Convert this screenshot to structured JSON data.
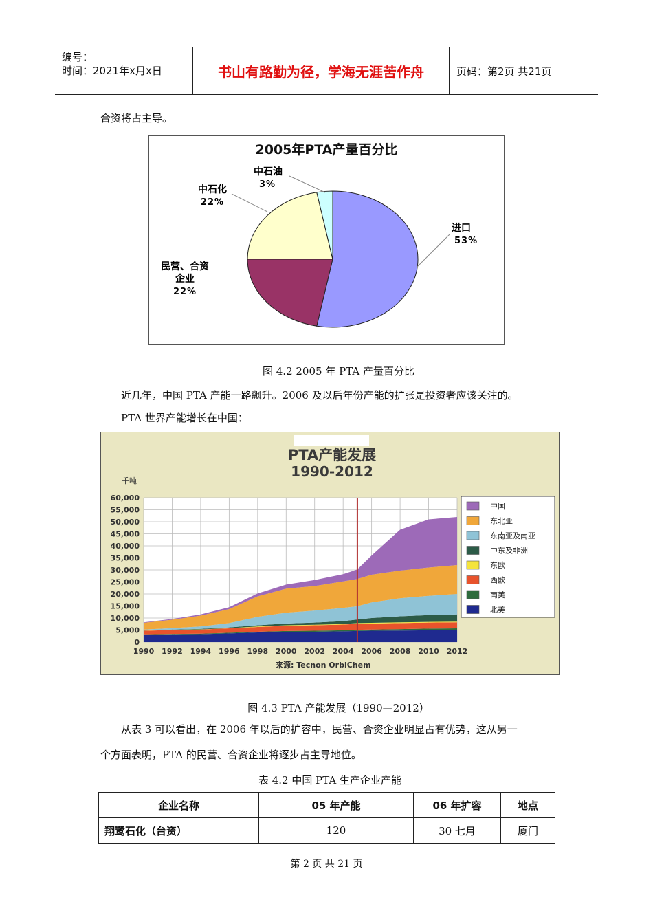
{
  "header": {
    "number_label": "编号：",
    "date_label": "时间：2021年x月x日",
    "motto": "书山有路勤为径，学海无涯苦作舟",
    "page_label": "页码：第2页  共21页"
  },
  "body": {
    "line1": "合资将占主导。",
    "fig42_caption": "图 4.2  2005 年 PTA 产量百分比",
    "para2": "近几年，中国 PTA 产能一路飙升。2006 及以后年份产能的扩张是投资者应该关注的。",
    "para3": "PTA 世界产能增长在中国：",
    "fig43_caption": "图 4.3  PTA 产能发展（1990—2012）",
    "para4_line1": "从表 3 可以看出，在 2006 年以后的扩容中，民营、合资企业明显占有优势，这从另一",
    "para4_line2": "个方面表明，PTA 的民营、合资企业将逐步占主导地位。",
    "table_caption": "表 4.2    中国 PTA 生产企业产能"
  },
  "table": {
    "headers": [
      "企业名称",
      "05 年产能",
      "06 年扩容",
      "地点"
    ],
    "rows": [
      [
        "翔鹭石化（台资）",
        "120",
        "30 七月",
        "厦门"
      ]
    ]
  },
  "footer": {
    "text": "第 2 页 共 21 页"
  },
  "chart_data": [
    {
      "type": "pie",
      "title": "2005年PTA产量百分比",
      "slices": [
        {
          "label": "进口",
          "pct_text": "53%",
          "value": 53,
          "color": "#9999ff"
        },
        {
          "label": "民营、合资企业",
          "label_line1": "民营、合资",
          "label_line2": "企业",
          "pct_text": "22%",
          "value": 22,
          "color": "#993366"
        },
        {
          "label": "中石化",
          "pct_text": "22%",
          "value": 22,
          "color": "#ffffcc"
        },
        {
          "label": "中石油",
          "pct_text": "3%",
          "value": 3,
          "color": "#ccffff"
        }
      ]
    },
    {
      "type": "area",
      "title": "PTA产能发展",
      "subtitle": "1990-2012",
      "ylabel": "千吨",
      "source": "来源: Tecnon OrbiChem",
      "ylim": [
        0,
        60000
      ],
      "y_ticks": [
        "0",
        "5,000",
        "10,000",
        "15,000",
        "20,000",
        "25,000",
        "30,000",
        "35,000",
        "40,000",
        "45,000",
        "50,000",
        "55,000",
        "60,000"
      ],
      "x_ticks": [
        "1990",
        "1992",
        "1994",
        "1996",
        "1998",
        "2000",
        "2002",
        "2004",
        "2006",
        "2008",
        "2010",
        "2012"
      ],
      "marker_year": 2005,
      "x": [
        1990,
        1992,
        1994,
        1996,
        1998,
        2000,
        2002,
        2004,
        2005,
        2006,
        2008,
        2010,
        2012
      ],
      "series": [
        {
          "name": "北美",
          "color": "#1f2a8f",
          "values": [
            3000,
            3200,
            3300,
            3600,
            4000,
            4200,
            4300,
            4500,
            4600,
            4700,
            4800,
            4900,
            5000
          ]
        },
        {
          "name": "南美",
          "color": "#2e6b3c",
          "values": [
            200,
            200,
            200,
            300,
            300,
            400,
            400,
            400,
            500,
            500,
            600,
            700,
            700
          ]
        },
        {
          "name": "西欧",
          "color": "#e8532c",
          "values": [
            1500,
            1600,
            1700,
            1800,
            2000,
            2200,
            2300,
            2400,
            2500,
            2500,
            2500,
            2500,
            2500
          ]
        },
        {
          "name": "东欧",
          "color": "#f5e43c",
          "values": [
            100,
            100,
            100,
            100,
            200,
            200,
            200,
            200,
            300,
            300,
            300,
            300,
            300
          ]
        },
        {
          "name": "中东及非洲",
          "color": "#2c5b47",
          "values": [
            100,
            100,
            200,
            300,
            500,
            700,
            900,
            1200,
            1500,
            2000,
            2500,
            2800,
            3000
          ]
        },
        {
          "name": "东南亚及南亚",
          "color": "#8fc3d6",
          "values": [
            300,
            600,
            1000,
            1800,
            3500,
            4500,
            5000,
            5500,
            5500,
            6500,
            7500,
            8000,
            8500
          ]
        },
        {
          "name": "东北亚",
          "color": "#f0a73a",
          "values": [
            2800,
            3500,
            4500,
            5800,
            8500,
            10000,
            10200,
            11000,
            11300,
            11500,
            11500,
            11800,
            12000
          ]
        },
        {
          "name": "中国",
          "color": "#9d6ab8",
          "values": [
            200,
            300,
            500,
            800,
            1200,
            1700,
            2500,
            3000,
            4000,
            8000,
            17000,
            20000,
            20000
          ]
        }
      ]
    }
  ]
}
